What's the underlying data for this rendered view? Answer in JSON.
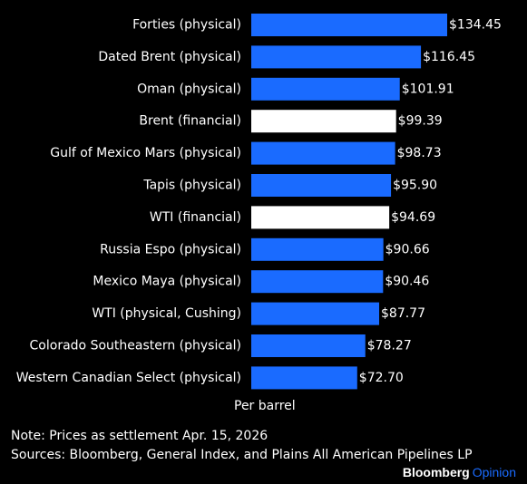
{
  "chart_data": {
    "type": "bar",
    "orientation": "horizontal",
    "categories": [
      "Forties (physical)",
      "Dated Brent (physical)",
      "Oman (physical)",
      "Brent (financial)",
      "Gulf of Mexico Mars (physical)",
      "Tapis (physical)",
      "WTI (financial)",
      "Russia Espo (physical)",
      "Mexico Maya (physical)",
      "WTI (physical, Cushing)",
      "Colorado Southeastern (physical)",
      "Western Canadian Select (physical)"
    ],
    "values": [
      134.45,
      116.45,
      101.91,
      99.39,
      98.73,
      95.9,
      94.69,
      90.66,
      90.46,
      87.77,
      78.27,
      72.7
    ],
    "value_labels": [
      "$134.45",
      "$116.45",
      "$101.91",
      "$99.39",
      "$98.73",
      "$95.90",
      "$94.69",
      "$90.66",
      "$90.46",
      "$87.77",
      "$78.27",
      "$72.70"
    ],
    "highlighted": [
      false,
      false,
      false,
      true,
      false,
      false,
      true,
      false,
      false,
      false,
      false,
      false
    ],
    "xlabel": "Per barrel",
    "xlim": [
      0,
      134.45
    ],
    "colors": {
      "default": "#1a6bff",
      "highlight": "#ffffff",
      "background": "#000000"
    }
  },
  "notes": {
    "note": "Note: Prices as settlement Apr. 15, 2026",
    "sources": "Sources: Bloomberg, General Index, and Plains All American Pipelines LP"
  },
  "brand": {
    "name": "Bloomberg",
    "section": "Opinion"
  }
}
